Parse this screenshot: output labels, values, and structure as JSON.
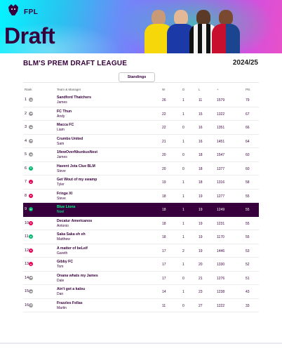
{
  "brand": {
    "fpl": "FPL",
    "draft": "Draft"
  },
  "league": {
    "title": "BLM'S PREM DRAFT LEAGUE",
    "season": "2024/25"
  },
  "tabs": {
    "standings": "Standings"
  },
  "columns": {
    "rank": "Rank",
    "team": "Team & Manager",
    "w": "W",
    "d": "D",
    "l": "L",
    "pf": "+",
    "pts": "Pts"
  },
  "standings": [
    {
      "rank": "1",
      "move": "same",
      "team": "Sandford Thatchers",
      "manager": "James",
      "w": "26",
      "d": "1",
      "l": "11",
      "pf": "1579",
      "pts": "79"
    },
    {
      "rank": "2",
      "move": "same",
      "team": "FC Thun",
      "manager": "Andy",
      "w": "22",
      "d": "1",
      "l": "15",
      "pf": "1322",
      "pts": "67"
    },
    {
      "rank": "3",
      "move": "same",
      "team": "Macca FC",
      "manager": "Liam",
      "w": "22",
      "d": "0",
      "l": "16",
      "pf": "1351",
      "pts": "66"
    },
    {
      "rank": "4",
      "move": "same",
      "team": "Crumbs United",
      "manager": "Sam",
      "w": "21",
      "d": "1",
      "l": "16",
      "pf": "1451",
      "pts": "64"
    },
    {
      "rank": "5",
      "move": "same",
      "team": "1fiewOverNkunkusNest",
      "manager": "James",
      "w": "20",
      "d": "0",
      "l": "18",
      "pf": "1547",
      "pts": "60"
    },
    {
      "rank": "6",
      "move": "up",
      "team": "Havent Jota Clue BLM",
      "manager": "Steve",
      "w": "20",
      "d": "0",
      "l": "18",
      "pf": "1377",
      "pts": "60"
    },
    {
      "rank": "7",
      "move": "down",
      "team": "Get Wout of my swamp",
      "manager": "Tyler",
      "w": "19",
      "d": "1",
      "l": "18",
      "pf": "1316",
      "pts": "58"
    },
    {
      "rank": "8",
      "move": "down",
      "team": "Fringe XI",
      "manager": "Steve",
      "w": "18",
      "d": "1",
      "l": "19",
      "pf": "1277",
      "pts": "55"
    },
    {
      "rank": "9",
      "move": "up",
      "team": "Blue Lions",
      "manager": "Noel",
      "w": "18",
      "d": "1",
      "l": "19",
      "pf": "1249",
      "pts": "55"
    },
    {
      "rank": "10",
      "move": "down",
      "team": "Decatur Americanos",
      "manager": "Antonio",
      "w": "18",
      "d": "1",
      "l": "19",
      "pf": "1231",
      "pts": "55"
    },
    {
      "rank": "11",
      "move": "up",
      "team": "Saka Saka eh eh",
      "manager": "Matthew",
      "w": "18",
      "d": "1",
      "l": "19",
      "pf": "1170",
      "pts": "55"
    },
    {
      "rank": "12",
      "move": "down",
      "team": "A matter of beLeif",
      "manager": "Gareth",
      "w": "17",
      "d": "2",
      "l": "19",
      "pf": "1446",
      "pts": "53"
    },
    {
      "rank": "13",
      "move": "down",
      "team": "Gibby FC",
      "manager": "Tom",
      "w": "17",
      "d": "1",
      "l": "20",
      "pf": "1330",
      "pts": "52"
    },
    {
      "rank": "14",
      "move": "same",
      "team": "Onana whats my James",
      "manager": "Dale",
      "w": "17",
      "d": "0",
      "l": "21",
      "pf": "1276",
      "pts": "51"
    },
    {
      "rank": "15",
      "move": "same",
      "team": "Ain't got a kalou",
      "manager": "Dan",
      "w": "14",
      "d": "1",
      "l": "23",
      "pf": "1238",
      "pts": "43"
    },
    {
      "rank": "16",
      "move": "same",
      "team": "Frazzles Fellas",
      "manager": "Martin",
      "w": "11",
      "d": "0",
      "l": "27",
      "pf": "1222",
      "pts": "33"
    }
  ],
  "highlight_rank": "9",
  "colors": {
    "primary": "#37003c",
    "accent": "#00ff87",
    "up": "#00b96b",
    "down": "#e90052",
    "neutral": "#9a9a9a"
  }
}
